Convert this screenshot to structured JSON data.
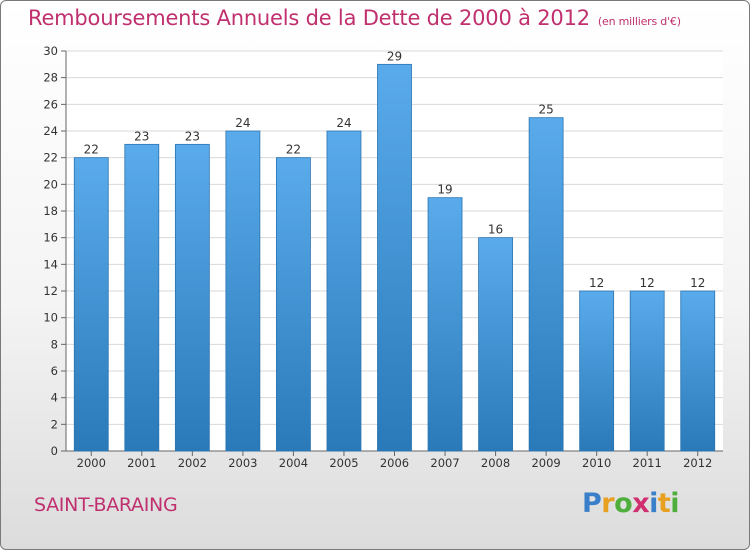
{
  "title": "Remboursements Annuels de la Dette de 2000 à 2012",
  "subtitle": "(en milliers d'€)",
  "commune": "SAINT-BARAING",
  "logo": {
    "text": "Proxiti",
    "colors": [
      "#3a7fc9",
      "#e8a020",
      "#4fae3c",
      "#d03070",
      "#3a7fc9",
      "#e8a020",
      "#4fae3c"
    ]
  },
  "chart_data": {
    "type": "bar",
    "categories": [
      "2000",
      "2001",
      "2002",
      "2003",
      "2004",
      "2005",
      "2006",
      "2007",
      "2008",
      "2009",
      "2010",
      "2011",
      "2012"
    ],
    "values": [
      22,
      23,
      23,
      24,
      22,
      24,
      29,
      19,
      16,
      25,
      12,
      12,
      12
    ],
    "ylim": [
      0,
      30
    ],
    "yticks": [
      0,
      2,
      4,
      6,
      8,
      10,
      12,
      14,
      16,
      18,
      20,
      22,
      24,
      26,
      28,
      30
    ],
    "grid": true,
    "bar_color_top": "#5aabeb",
    "bar_color_bottom": "#2a7ab9"
  }
}
